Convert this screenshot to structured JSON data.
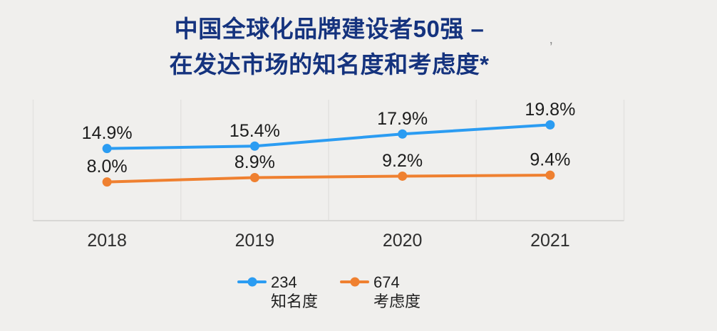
{
  "title": {
    "line1": "中国全球化品牌建设者50强 –",
    "line2": "在发达市场的知名度和考虑度*",
    "color": "#15337E"
  },
  "artifact": {
    "text": "’"
  },
  "colors": {
    "background": "#F0EFED",
    "gridline": "#E3E2E0",
    "baseline": "#D8D7D5",
    "label_text": "#1C1C1C",
    "axis_text": "#2E2E2E",
    "awareness_blue": "#2B9CF2",
    "consideration_orange": "#EF8030"
  },
  "chart_data": {
    "type": "line",
    "title": "中国全球化品牌建设者50强 – 在发达市场的知名度和考虑度*",
    "categories": [
      "2018",
      "2019",
      "2020",
      "2021"
    ],
    "series": [
      {
        "name": "知名度",
        "legend_value": "234",
        "color": "#2B9CF2",
        "values": [
          14.9,
          15.4,
          17.9,
          19.8
        ],
        "labels": [
          "14.9%",
          "15.4%",
          "17.9%",
          "19.8%"
        ]
      },
      {
        "name": "考虑度",
        "legend_value": "674",
        "color": "#EF8030",
        "values": [
          8.0,
          8.9,
          9.2,
          9.4
        ],
        "labels": [
          "8.0%",
          "8.9%",
          "9.2%",
          "9.4%"
        ]
      }
    ],
    "xlabel": "",
    "ylabel": "",
    "ylim": [
      0,
      25
    ],
    "grid": "vertical-only",
    "legend_position": "bottom"
  },
  "legend": {
    "items": [
      {
        "value_label": "234",
        "name": "知名度",
        "color": "#2B9CF2"
      },
      {
        "value_label": "674",
        "name": "考虑度",
        "color": "#EF8030"
      }
    ]
  }
}
